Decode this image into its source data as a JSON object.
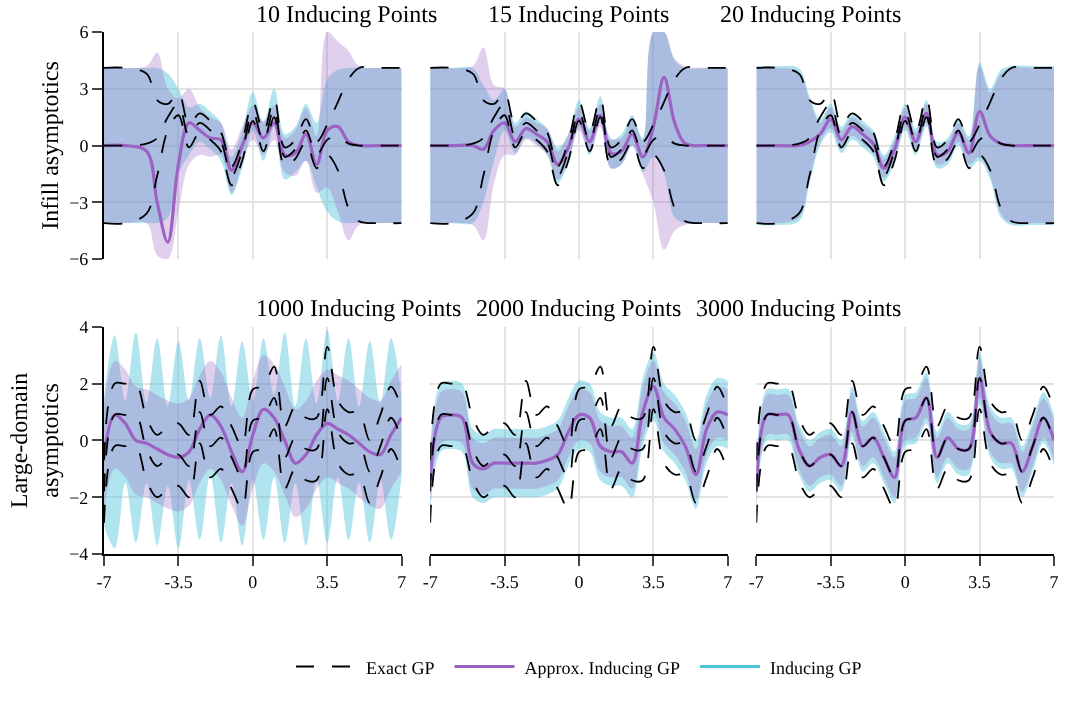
{
  "chart_data": [
    {
      "type": "line",
      "title": "10 Inducing Points",
      "ylabel": "Infill asymptotics",
      "xlim": [
        -7,
        7
      ],
      "xticks": [
        -7,
        -3.5,
        0,
        3.5,
        7
      ],
      "ylim": [
        -6,
        6
      ],
      "yticks": [
        -6,
        -3,
        0,
        3,
        6
      ],
      "grid": true,
      "tick_labels": "y",
      "legend": "bottom",
      "x": [
        -7,
        -6,
        -5,
        -4.5,
        -4,
        -3.5,
        -3,
        -2.5,
        -2,
        -1.5,
        -1,
        -0.5,
        0,
        0.5,
        1,
        1.5,
        2,
        2.5,
        3,
        3.5,
        4,
        4.5,
        5,
        6,
        7
      ],
      "series": [
        {
          "name": "Exact GP",
          "color": "#000000",
          "line_style": "dashed",
          "values": [
            0,
            0,
            0.1,
            0.4,
            1.5,
            2.2,
            0.5,
            1.2,
            0.8,
            0.2,
            -1.6,
            -0.3,
            1.8,
            0.2,
            2.0,
            -0.6,
            -0.2,
            0.8,
            -0.5,
            0.3,
            0.5,
            0.1,
            0,
            0,
            0
          ]
        },
        {
          "color": "#000000",
          "line_style": "dashed",
          "values": [
            -4.1,
            -4.1,
            -3.6,
            -1.6,
            0.8,
            1.6,
            -0.1,
            0.7,
            0.3,
            -0.3,
            -2.1,
            -0.8,
            1.3,
            -0.3,
            1.5,
            -1.1,
            -0.7,
            0.2,
            -1.2,
            -0.5,
            -1.3,
            -3.3,
            -4.0,
            -4.1,
            -4.1
          ]
        },
        {
          "color": "#000000",
          "line_style": "dashed",
          "values": [
            4.1,
            4.1,
            3.8,
            2.4,
            2.2,
            2.8,
            1.1,
            1.7,
            1.3,
            0.7,
            -1.1,
            0.2,
            2.3,
            0.7,
            2.5,
            -0.1,
            0.3,
            1.4,
            0.2,
            1.1,
            2.3,
            3.5,
            4.1,
            4.1,
            4.1
          ]
        },
        {
          "name": "Inducing GP",
          "color": "#4fc3d9",
          "values": [
            null,
            null,
            null,
            null,
            null,
            null,
            null,
            null,
            null,
            null,
            null,
            null,
            null,
            null,
            null,
            null,
            null,
            null,
            null,
            null,
            null,
            null,
            null,
            null,
            null
          ],
          "lower": [
            -4.1,
            -4.1,
            -4.1,
            -4.1,
            -3.8,
            -1.5,
            -0.5,
            0.2,
            -0.2,
            -0.8,
            -2.6,
            -1.2,
            0.8,
            -0.8,
            1.0,
            -1.8,
            -1.4,
            -0.8,
            -2.2,
            -3.5,
            -4.0,
            -4.1,
            -4.1,
            -4.1,
            -4.1
          ],
          "upper": [
            4.1,
            4.1,
            4.1,
            4.1,
            3.8,
            3.0,
            2.0,
            2.2,
            1.8,
            1.2,
            -0.6,
            0.8,
            2.8,
            1.2,
            3.0,
            0.6,
            1.0,
            2.2,
            1.2,
            3.5,
            4.0,
            4.1,
            4.1,
            4.1,
            4.1
          ]
        },
        {
          "name": "Approx. Inducing GP",
          "color": "#9b62c4",
          "values": [
            0,
            0,
            -0.3,
            -3.0,
            -5.1,
            -1.0,
            1.2,
            0.8,
            0.4,
            0.3,
            -1.3,
            0.0,
            1.2,
            0.4,
            1.2,
            -0.5,
            -0.4,
            0.6,
            -1.0,
            0.8,
            1.0,
            0.2,
            0,
            0,
            0
          ],
          "lower": [
            -4.1,
            -4.1,
            -4.1,
            -5.8,
            -6,
            -3.5,
            -1.0,
            -0.5,
            -0.6,
            -0.5,
            -2.5,
            -1.0,
            0.3,
            -0.5,
            0.3,
            -1.4,
            -1.6,
            -0.8,
            -2.5,
            -2.2,
            -3.5,
            -5.0,
            -4.2,
            -4.1,
            -4.1
          ],
          "upper": [
            4.1,
            4.1,
            4.2,
            4.9,
            3.0,
            2.5,
            3.0,
            2.0,
            1.5,
            1.2,
            -0.2,
            1.0,
            2.1,
            1.3,
            2.1,
            0.4,
            0.8,
            2.0,
            0.5,
            6.0,
            5.5,
            5.0,
            4.2,
            4.1,
            4.1
          ]
        }
      ]
    },
    {
      "type": "line",
      "title": "15 Inducing Points",
      "xlim": [
        -7,
        7
      ],
      "xticks": [
        -7,
        -3.5,
        0,
        3.5,
        7
      ],
      "ylim": [
        -6,
        6
      ],
      "yticks": [
        -6,
        -3,
        0,
        3,
        6
      ],
      "grid": true,
      "tick_labels": false,
      "x": [
        -7,
        -6,
        -5,
        -4.5,
        -4,
        -3.5,
        -3,
        -2.5,
        -2,
        -1.5,
        -1,
        -0.5,
        0,
        0.5,
        1,
        1.5,
        2,
        2.5,
        3,
        3.5,
        4,
        4.5,
        5,
        6,
        7
      ],
      "series": [
        {
          "color": "#000000",
          "line_style": "dashed",
          "values": [
            0,
            0,
            0.1,
            0.4,
            1.5,
            2.2,
            0.5,
            1.2,
            0.8,
            0.2,
            -1.6,
            -0.3,
            1.8,
            0.2,
            2.0,
            -0.6,
            -0.2,
            0.8,
            -0.5,
            0.3,
            0.5,
            0.1,
            0,
            0,
            0
          ]
        },
        {
          "color": "#000000",
          "line_style": "dashed",
          "values": [
            -4.1,
            -4.1,
            -3.6,
            -1.6,
            0.8,
            1.6,
            -0.1,
            0.7,
            0.3,
            -0.3,
            -2.1,
            -0.8,
            1.3,
            -0.3,
            1.5,
            -1.1,
            -0.7,
            0.2,
            -1.2,
            -0.5,
            -1.3,
            -3.3,
            -4.0,
            -4.1,
            -4.1
          ]
        },
        {
          "color": "#000000",
          "line_style": "dashed",
          "values": [
            4.1,
            4.1,
            3.8,
            2.4,
            2.2,
            2.8,
            1.1,
            1.7,
            1.3,
            0.7,
            -1.1,
            0.2,
            2.3,
            0.7,
            2.5,
            -0.1,
            0.3,
            1.4,
            0.2,
            1.1,
            2.3,
            3.5,
            4.1,
            4.1,
            4.1
          ]
        },
        {
          "color": "#4fc3d9",
          "values": [
            null,
            null,
            null,
            null,
            null,
            null,
            null,
            null,
            null,
            null,
            null,
            null,
            null,
            null,
            null,
            null,
            null,
            null,
            null,
            null,
            null,
            null,
            null,
            null,
            null
          ],
          "lower": [
            -4.1,
            -4.1,
            -4.1,
            -3.0,
            -0.8,
            0.8,
            -0.4,
            0.4,
            0.1,
            -0.5,
            -2.0,
            -0.9,
            1.0,
            -0.5,
            1.2,
            -1.2,
            -1.0,
            0.0,
            -1.4,
            -0.6,
            -1.5,
            -3.8,
            -4.1,
            -4.1,
            -4.1
          ],
          "upper": [
            4.1,
            4.1,
            4.1,
            3.2,
            2.4,
            3.0,
            1.2,
            1.8,
            1.4,
            0.9,
            -0.1,
            0.6,
            2.4,
            0.9,
            2.6,
            0.3,
            0.6,
            1.6,
            0.4,
            6.0,
            6.0,
            4.5,
            4.1,
            4.1,
            4.1
          ]
        },
        {
          "color": "#9b62c4",
          "values": [
            0,
            0,
            0,
            -0.2,
            0.8,
            1.2,
            0.2,
            0.9,
            0.6,
            0.2,
            -1.0,
            -0.1,
            1.4,
            0.2,
            1.6,
            -0.4,
            -0.3,
            0.6,
            -0.6,
            1.0,
            3.6,
            1.2,
            0.1,
            0,
            0
          ],
          "lower": [
            -4.1,
            -4.1,
            -4.2,
            -5.0,
            -2.0,
            -0.5,
            -0.5,
            0.3,
            0.0,
            -0.5,
            -1.8,
            -0.8,
            0.8,
            -0.4,
            1.0,
            -1.2,
            -1.0,
            0.0,
            -1.5,
            -3.0,
            -5.5,
            -4.5,
            -4.2,
            -4.1,
            -4.1
          ],
          "upper": [
            4.1,
            4.1,
            4.2,
            5.2,
            3.2,
            3.0,
            1.0,
            1.5,
            1.2,
            0.9,
            -0.3,
            0.6,
            2.0,
            0.8,
            2.2,
            0.4,
            0.4,
            1.3,
            0.3,
            6.0,
            6.0,
            4.6,
            4.2,
            4.1,
            4.1
          ]
        }
      ]
    },
    {
      "type": "line",
      "title": "20 Inducing Points",
      "xlim": [
        -7,
        7
      ],
      "xticks": [
        -7,
        -3.5,
        0,
        3.5,
        7
      ],
      "ylim": [
        -6,
        6
      ],
      "yticks": [
        -6,
        -3,
        0,
        3,
        6
      ],
      "grid": true,
      "tick_labels": false,
      "x": [
        -7,
        -6,
        -5,
        -4.5,
        -4,
        -3.5,
        -3,
        -2.5,
        -2,
        -1.5,
        -1,
        -0.5,
        0,
        0.5,
        1,
        1.5,
        2,
        2.5,
        3,
        3.5,
        4,
        4.5,
        5,
        6,
        7
      ],
      "series": [
        {
          "color": "#000000",
          "line_style": "dashed",
          "values": [
            0,
            0,
            0.1,
            0.4,
            1.5,
            2.2,
            0.5,
            1.2,
            0.8,
            0.2,
            -1.6,
            -0.3,
            1.8,
            0.2,
            2.0,
            -0.6,
            -0.2,
            0.8,
            -0.5,
            0.3,
            0.5,
            0.1,
            0,
            0,
            0
          ]
        },
        {
          "color": "#000000",
          "line_style": "dashed",
          "values": [
            -4.1,
            -4.1,
            -3.6,
            -1.6,
            0.8,
            1.6,
            -0.1,
            0.7,
            0.3,
            -0.3,
            -2.1,
            -0.8,
            1.3,
            -0.3,
            1.5,
            -1.1,
            -0.7,
            0.2,
            -1.2,
            -0.5,
            -1.3,
            -3.3,
            -4.0,
            -4.1,
            -4.1
          ]
        },
        {
          "color": "#000000",
          "line_style": "dashed",
          "values": [
            4.1,
            4.1,
            3.8,
            2.4,
            2.2,
            2.8,
            1.1,
            1.7,
            1.3,
            0.7,
            -1.1,
            0.2,
            2.3,
            0.7,
            2.5,
            -0.1,
            0.3,
            1.4,
            0.2,
            1.1,
            2.3,
            3.5,
            4.1,
            4.1,
            4.1
          ]
        },
        {
          "color": "#4fc3d9",
          "values": [
            null,
            null,
            null,
            null,
            null,
            null,
            null,
            null,
            null,
            null,
            null,
            null,
            null,
            null,
            null,
            null,
            null,
            null,
            null,
            null,
            null,
            null,
            null,
            null,
            null
          ],
          "lower": [
            -4.2,
            -4.2,
            -4.0,
            -2.0,
            0.0,
            0.7,
            -0.4,
            0.3,
            -0.1,
            -0.6,
            -1.9,
            -0.9,
            0.8,
            -0.5,
            1.0,
            -1.2,
            -1.0,
            0.0,
            -1.2,
            -0.8,
            -1.8,
            -3.8,
            -4.2,
            -4.2,
            -4.2
          ],
          "upper": [
            4.2,
            4.2,
            4.1,
            2.6,
            1.4,
            2.2,
            1.0,
            1.7,
            1.3,
            0.8,
            -0.5,
            0.5,
            2.2,
            0.9,
            2.4,
            0.2,
            0.4,
            1.4,
            0.5,
            4.4,
            3.0,
            4.0,
            4.2,
            4.2,
            4.2
          ]
        },
        {
          "color": "#9b62c4",
          "values": [
            0,
            0,
            0,
            0.2,
            0.6,
            1.4,
            0.3,
            1.0,
            0.6,
            0.1,
            -1.2,
            -0.2,
            1.5,
            0.2,
            1.7,
            -0.5,
            -0.3,
            0.7,
            -0.4,
            1.8,
            0.5,
            0.1,
            0,
            0,
            0
          ],
          "lower": [
            -4.1,
            -4.1,
            -3.8,
            -1.8,
            0.2,
            0.9,
            -0.2,
            0.5,
            0.1,
            -0.4,
            -1.7,
            -0.7,
            1.0,
            -0.3,
            1.2,
            -1.0,
            -0.8,
            0.2,
            -1.0,
            -0.6,
            -1.6,
            -3.6,
            -4.1,
            -4.1,
            -4.1
          ],
          "upper": [
            4.1,
            4.1,
            3.9,
            2.4,
            1.2,
            2.0,
            0.8,
            1.5,
            1.1,
            0.6,
            -0.7,
            0.3,
            2.0,
            0.7,
            2.2,
            0.0,
            0.2,
            1.2,
            0.3,
            4.2,
            2.8,
            3.8,
            4.1,
            4.1,
            4.1
          ]
        }
      ]
    },
    {
      "type": "line",
      "title": "1000 Inducing Points",
      "ylabel": "Large-domain\nasymptotics",
      "xlim": [
        -7,
        7
      ],
      "xticks": [
        -7,
        -3.5,
        0,
        3.5,
        7
      ],
      "ylim": [
        -4,
        4
      ],
      "yticks": [
        -4,
        -2,
        0,
        2,
        4
      ],
      "grid": true,
      "x": [
        -7,
        -6.5,
        -6,
        -5.5,
        -5,
        -4.5,
        -4,
        -3.5,
        -3,
        -2.5,
        -2,
        -1.5,
        -1,
        -0.5,
        0,
        0.5,
        1,
        1.5,
        2,
        2.5,
        3,
        3.5,
        4,
        4.5,
        5,
        5.5,
        6,
        6.5,
        7
      ],
      "series": [
        {
          "color": "#000000",
          "line_style": "dashed",
          "values": [
            -1.8,
            0.9,
            0.9,
            0.9,
            -0.3,
            -0.9,
            -0.6,
            -0.5,
            -0.9,
            1.0,
            -0.2,
            0.1,
            -0.6,
            -1.3,
            0.7,
            0.8,
            1.5,
            -0.6,
            0.1,
            -0.3,
            -0.3,
            2.2,
            0.3,
            -0.1,
            -0.1,
            -1.1,
            -0.2,
            0.8,
            0.0
          ]
        },
        {
          "color": "#000000",
          "line_style": "dashed",
          "values": [
            -2.9,
            -0.2,
            -0.2,
            -0.2,
            -1.4,
            -2.0,
            -1.7,
            -1.6,
            -2.0,
            -0.1,
            -1.3,
            -1.0,
            -1.7,
            -2.4,
            -0.4,
            -0.3,
            0.4,
            -1.7,
            -1.0,
            -1.4,
            -1.4,
            1.1,
            -0.8,
            -1.2,
            -1.2,
            -2.2,
            -1.3,
            -0.3,
            -1.1
          ]
        },
        {
          "color": "#000000",
          "line_style": "dashed",
          "values": [
            -0.7,
            2.0,
            2.0,
            2.0,
            0.8,
            0.2,
            0.5,
            0.6,
            0.2,
            2.1,
            0.9,
            1.2,
            0.5,
            -0.2,
            1.8,
            1.9,
            2.6,
            0.5,
            1.2,
            0.8,
            0.8,
            3.3,
            1.4,
            1.0,
            1.0,
            0.0,
            0.9,
            1.9,
            1.1
          ]
        },
        {
          "color": "#4fc3d9",
          "values": [
            null,
            null,
            null,
            null,
            null,
            null,
            null,
            null,
            null,
            null,
            null,
            null,
            null,
            null,
            null,
            null,
            null,
            null,
            null,
            null,
            null,
            null,
            null,
            null,
            null,
            null,
            null,
            null,
            null
          ],
          "lower": [
            -3.0,
            -3.8,
            -1.5,
            -3.6,
            -1.5,
            -3.7,
            -1.6,
            -3.8,
            -1.4,
            -3.5,
            -1.2,
            -3.6,
            -1.5,
            -3.7,
            -1.4,
            -3.5,
            -1.3,
            -3.6,
            -1.5,
            -3.7,
            -1.4,
            -3.6,
            -1.3,
            -3.5,
            -1.5,
            -3.6,
            -1.4,
            -3.5,
            -1.2
          ],
          "upper": [
            1.5,
            3.7,
            1.4,
            3.8,
            1.3,
            3.6,
            1.2,
            3.5,
            1.4,
            3.6,
            1.5,
            3.7,
            1.2,
            3.5,
            1.4,
            3.6,
            1.6,
            3.8,
            1.2,
            3.6,
            1.3,
            3.9,
            1.4,
            3.6,
            1.2,
            3.5,
            1.3,
            3.6,
            1.5
          ]
        },
        {
          "color": "#9b62c4",
          "values": [
            -0.6,
            0.9,
            0.6,
            0.0,
            -0.1,
            -0.3,
            -0.5,
            -0.6,
            -0.4,
            0.4,
            0.9,
            0.5,
            -0.4,
            -1.1,
            0.2,
            1.1,
            0.8,
            0.0,
            -0.8,
            -0.5,
            0.2,
            0.6,
            0.4,
            0.2,
            -0.1,
            -0.4,
            -0.5,
            0.2,
            0.8
          ],
          "lower": [
            -2.5,
            -1.0,
            -1.3,
            -1.9,
            -2.0,
            -2.2,
            -2.4,
            -2.5,
            -2.3,
            -1.5,
            -1.0,
            -1.4,
            -2.3,
            -3.0,
            -1.7,
            -0.8,
            -1.1,
            -1.9,
            -2.7,
            -2.4,
            -1.7,
            -1.3,
            -1.5,
            -1.7,
            -2.0,
            -2.3,
            -2.4,
            -1.7,
            -1.1
          ],
          "upper": [
            1.3,
            2.8,
            2.5,
            1.9,
            1.8,
            1.6,
            1.4,
            1.3,
            1.5,
            2.3,
            2.8,
            2.4,
            1.5,
            0.8,
            2.1,
            3.0,
            2.7,
            1.9,
            1.1,
            1.4,
            2.1,
            2.5,
            2.3,
            2.1,
            1.8,
            1.5,
            1.4,
            2.1,
            2.7
          ]
        }
      ]
    },
    {
      "type": "line",
      "title": "2000 Inducing Points",
      "xlim": [
        -7,
        7
      ],
      "xticks": [
        -7,
        -3.5,
        0,
        3.5,
        7
      ],
      "ylim": [
        -4,
        4
      ],
      "yticks": [
        -4,
        -2,
        0,
        2,
        4
      ],
      "grid": true,
      "tick_labels": "x",
      "x": [
        -7,
        -6.5,
        -6,
        -5.5,
        -5,
        -4.5,
        -4,
        -3.5,
        -3,
        -2.5,
        -2,
        -1.5,
        -1,
        -0.5,
        0,
        0.5,
        1,
        1.5,
        2,
        2.5,
        3,
        3.5,
        4,
        4.5,
        5,
        5.5,
        6,
        6.5,
        7
      ],
      "series": [
        {
          "color": "#000000",
          "line_style": "dashed",
          "values": [
            -1.8,
            0.9,
            0.9,
            0.9,
            -0.3,
            -0.9,
            -0.6,
            -0.5,
            -0.9,
            1.0,
            -0.2,
            0.1,
            -0.6,
            -1.3,
            0.7,
            0.8,
            1.5,
            -0.6,
            0.1,
            -0.3,
            -0.3,
            2.2,
            0.3,
            -0.1,
            -0.1,
            -1.1,
            -0.2,
            0.8,
            0.0
          ]
        },
        {
          "color": "#000000",
          "line_style": "dashed",
          "values": [
            -2.9,
            -0.2,
            -0.2,
            -0.2,
            -1.4,
            -2.0,
            -1.7,
            -1.6,
            -2.0,
            -0.1,
            -1.3,
            -1.0,
            -1.7,
            -2.4,
            -0.4,
            -0.3,
            0.4,
            -1.7,
            -1.0,
            -1.4,
            -1.4,
            1.1,
            -0.8,
            -1.2,
            -1.2,
            -2.2,
            -1.3,
            -0.3,
            -1.1
          ]
        },
        {
          "color": "#000000",
          "line_style": "dashed",
          "values": [
            -0.7,
            2.0,
            2.0,
            2.0,
            0.8,
            0.2,
            0.5,
            0.6,
            0.2,
            2.1,
            0.9,
            1.2,
            0.5,
            -0.2,
            1.8,
            1.9,
            2.6,
            0.5,
            1.2,
            0.8,
            0.8,
            3.3,
            1.4,
            1.0,
            1.0,
            0.0,
            0.9,
            1.9,
            1.1
          ]
        },
        {
          "color": "#4fc3d9",
          "values": [
            null,
            null,
            null,
            null,
            null,
            null,
            null,
            null,
            null,
            null,
            null,
            null,
            null,
            null,
            null,
            null,
            null,
            null,
            null,
            null,
            null,
            null,
            null,
            null,
            null,
            null,
            null,
            null,
            null
          ],
          "lower": [
            -2.6,
            -0.4,
            -0.3,
            -0.4,
            -2.0,
            -2.2,
            -2.0,
            -2.0,
            -2.0,
            -2.0,
            -2.0,
            -1.9,
            -1.7,
            -0.9,
            -0.3,
            -0.4,
            -1.4,
            -1.6,
            -1.6,
            -2.0,
            -0.2,
            0.7,
            -0.4,
            -0.8,
            -1.4,
            -2.4,
            -0.8,
            -0.2,
            -0.3
          ],
          "upper": [
            -0.2,
            2.0,
            2.1,
            2.0,
            0.4,
            0.2,
            0.4,
            0.4,
            0.4,
            0.4,
            0.4,
            0.5,
            0.7,
            1.5,
            2.1,
            2.0,
            1.0,
            0.8,
            0.8,
            0.4,
            2.2,
            3.1,
            2.0,
            1.6,
            1.0,
            0.0,
            1.6,
            2.2,
            2.1
          ]
        },
        {
          "color": "#9b62c4",
          "values": [
            -1.4,
            0.8,
            0.9,
            0.8,
            -0.8,
            -1.0,
            -0.8,
            -0.8,
            -0.8,
            -0.8,
            -0.8,
            -0.7,
            -0.5,
            0.3,
            0.9,
            0.8,
            -0.2,
            -0.4,
            -0.4,
            -0.8,
            1.0,
            1.9,
            0.8,
            0.4,
            -0.2,
            -1.2,
            0.4,
            1.0,
            0.9
          ],
          "lower": [
            -2.3,
            -0.1,
            0.0,
            -0.1,
            -1.7,
            -1.9,
            -1.7,
            -1.7,
            -1.7,
            -1.7,
            -1.7,
            -1.6,
            -1.4,
            -0.6,
            0.0,
            -0.1,
            -1.1,
            -1.3,
            -1.3,
            -1.7,
            0.1,
            1.0,
            -0.1,
            -0.5,
            -1.1,
            -2.1,
            -0.5,
            0.1,
            0.0
          ],
          "upper": [
            -0.5,
            1.7,
            1.8,
            1.7,
            0.1,
            -0.1,
            0.1,
            0.1,
            0.1,
            0.1,
            0.1,
            0.2,
            0.4,
            1.2,
            1.8,
            1.7,
            0.7,
            0.5,
            0.5,
            0.1,
            1.9,
            2.8,
            1.7,
            1.3,
            0.7,
            -0.3,
            1.3,
            1.9,
            1.8
          ]
        }
      ]
    },
    {
      "type": "line",
      "title": "3000 Inducing Points",
      "xlim": [
        -7,
        7
      ],
      "xticks": [
        -7,
        -3.5,
        0,
        3.5,
        7
      ],
      "ylim": [
        -4,
        4
      ],
      "yticks": [
        -4,
        -2,
        0,
        2,
        4
      ],
      "grid": true,
      "tick_labels": "x",
      "x": [
        -7,
        -6.5,
        -6,
        -5.5,
        -5,
        -4.5,
        -4,
        -3.5,
        -3,
        -2.5,
        -2,
        -1.5,
        -1,
        -0.5,
        0,
        0.5,
        1,
        1.5,
        2,
        2.5,
        3,
        3.5,
        4,
        4.5,
        5,
        5.5,
        6,
        6.5,
        7
      ],
      "series": [
        {
          "color": "#000000",
          "line_style": "dashed",
          "values": [
            -1.8,
            0.9,
            0.9,
            0.9,
            -0.3,
            -0.9,
            -0.6,
            -0.5,
            -0.9,
            1.0,
            -0.2,
            0.1,
            -0.6,
            -1.3,
            0.7,
            0.8,
            1.5,
            -0.6,
            0.1,
            -0.3,
            -0.3,
            2.2,
            0.3,
            -0.1,
            -0.1,
            -1.1,
            -0.2,
            0.8,
            0.0
          ]
        },
        {
          "color": "#000000",
          "line_style": "dashed",
          "values": [
            -2.9,
            -0.2,
            -0.2,
            -0.2,
            -1.4,
            -2.0,
            -1.7,
            -1.6,
            -2.0,
            -0.1,
            -1.3,
            -1.0,
            -1.7,
            -2.4,
            -0.4,
            -0.3,
            0.4,
            -1.7,
            -1.0,
            -1.4,
            -1.4,
            1.1,
            -0.8,
            -1.2,
            -1.2,
            -2.2,
            -1.3,
            -0.3,
            -1.1
          ]
        },
        {
          "color": "#000000",
          "line_style": "dashed",
          "values": [
            -0.7,
            2.0,
            2.0,
            2.0,
            0.8,
            0.2,
            0.5,
            0.6,
            0.2,
            2.1,
            0.9,
            1.2,
            0.5,
            -0.2,
            1.8,
            1.9,
            2.6,
            0.5,
            1.2,
            0.8,
            0.8,
            3.3,
            1.4,
            1.0,
            1.0,
            0.0,
            0.9,
            1.9,
            1.1
          ]
        },
        {
          "color": "#4fc3d9",
          "values": [
            null,
            null,
            null,
            null,
            null,
            null,
            null,
            null,
            null,
            null,
            null,
            null,
            null,
            null,
            null,
            null,
            null,
            null,
            null,
            null,
            null,
            null,
            null,
            null,
            null,
            null,
            null,
            null,
            null
          ],
          "lower": [
            -2.7,
            0.0,
            0.0,
            0.0,
            -1.2,
            -1.8,
            -1.5,
            -1.4,
            -1.8,
            0.1,
            -1.1,
            -0.8,
            -1.5,
            -2.2,
            -0.2,
            -0.1,
            0.6,
            -1.5,
            -0.8,
            -1.2,
            -1.2,
            1.3,
            -0.6,
            -1.0,
            -1.0,
            -2.0,
            -1.1,
            -0.1,
            -0.9
          ],
          "upper": [
            -0.9,
            1.8,
            1.8,
            1.8,
            0.6,
            0.0,
            0.3,
            0.4,
            0.0,
            1.9,
            0.7,
            1.0,
            0.3,
            -0.4,
            1.6,
            1.7,
            2.4,
            0.3,
            1.0,
            0.6,
            0.6,
            3.1,
            1.2,
            0.8,
            0.8,
            -0.2,
            0.7,
            1.7,
            0.9
          ]
        },
        {
          "color": "#9b62c4",
          "values": [
            -1.8,
            0.9,
            0.9,
            0.9,
            -0.3,
            -0.9,
            -0.6,
            -0.5,
            -0.9,
            1.0,
            -0.2,
            0.1,
            -0.6,
            -1.3,
            0.7,
            0.8,
            1.5,
            -0.6,
            0.1,
            -0.3,
            -0.3,
            2.2,
            0.3,
            -0.1,
            -0.1,
            -1.1,
            -0.2,
            0.8,
            0.0
          ],
          "lower": [
            -2.5,
            0.2,
            0.2,
            0.2,
            -1.0,
            -1.6,
            -1.3,
            -1.2,
            -1.6,
            0.3,
            -0.9,
            -0.6,
            -1.3,
            -2.0,
            0.0,
            0.1,
            0.8,
            -1.3,
            -0.6,
            -1.0,
            -1.0,
            1.5,
            -0.4,
            -0.8,
            -0.8,
            -1.8,
            -0.9,
            0.1,
            -0.7
          ],
          "upper": [
            -1.1,
            1.6,
            1.6,
            1.6,
            0.4,
            -0.2,
            0.1,
            0.2,
            -0.2,
            1.7,
            0.5,
            0.8,
            0.1,
            -0.6,
            1.4,
            1.5,
            2.2,
            0.1,
            0.8,
            0.4,
            0.4,
            2.9,
            1.0,
            0.6,
            0.6,
            -0.4,
            0.5,
            1.5,
            0.7
          ]
        }
      ]
    }
  ]
}
